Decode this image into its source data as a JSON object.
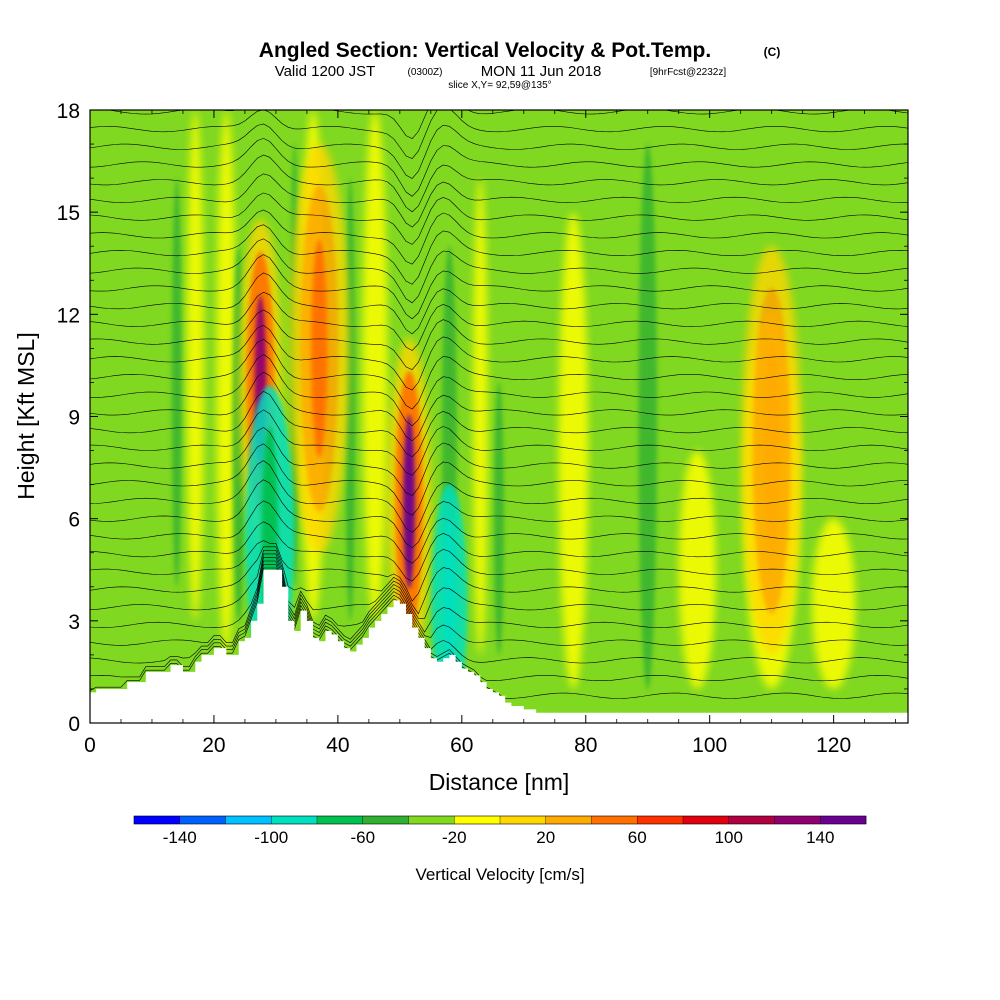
{
  "chart_data": {
    "type": "heatmap",
    "title": "Angled Section: Vertical Velocity & Pot.Temp.",
    "title_tag": "(C)",
    "subtitle": {
      "valid": "Valid 1200 JST",
      "utc": "(0300Z)",
      "date": "MON 11 Jun 2018",
      "forecast": "[9hrFcst@2232z]"
    },
    "slice_label": "slice X,Y= 92,59@135°",
    "xlabel": "Distance [nm]",
    "ylabel": "Height [Kft MSL]",
    "xlim": [
      0,
      132
    ],
    "ylim": [
      0,
      18
    ],
    "x_ticks": [
      "0",
      "20",
      "40",
      "60",
      "80",
      "100",
      "120"
    ],
    "x_tick_values": [
      0,
      20,
      40,
      60,
      80,
      100,
      120
    ],
    "y_ticks": [
      "0",
      "3",
      "6",
      "9",
      "12",
      "15",
      "18"
    ],
    "y_tick_values": [
      0,
      3,
      6,
      9,
      12,
      15,
      18
    ],
    "colorbar": {
      "label": "Vertical Velocity [cm/s]",
      "tick_labels": [
        "-140",
        "-100",
        "-60",
        "-20",
        "20",
        "60",
        "100",
        "140"
      ],
      "tick_values": [
        -140,
        -100,
        -60,
        -20,
        20,
        60,
        100,
        140
      ],
      "range": [
        -160,
        160
      ],
      "colors": [
        "#0000ff",
        "#0060ff",
        "#00c0ff",
        "#00e0c0",
        "#00c050",
        "#30b030",
        "#80d820",
        "#ffff00",
        "#ffd700",
        "#ffaa00",
        "#ff7000",
        "#ff3000",
        "#e00010",
        "#b00040",
        "#900070",
        "#6a0090"
      ]
    },
    "features": [
      {
        "kind": "updraft",
        "x": 27.5,
        "y": 10,
        "value": 120
      },
      {
        "kind": "downdraft",
        "x": 29,
        "y": 5.5,
        "value": -80
      },
      {
        "kind": "updraft",
        "x": 51.5,
        "y": 6.5,
        "value": 150
      },
      {
        "kind": "downdraft",
        "x": 58,
        "y": 3.5,
        "value": -100
      },
      {
        "kind": "updraft",
        "x": 37,
        "y": 11,
        "value": 40
      },
      {
        "kind": "weak-updraft",
        "x": 110,
        "y": 8,
        "value": 20
      }
    ],
    "terrain": [
      [
        0,
        0.9
      ],
      [
        1,
        1.0
      ],
      [
        2,
        1.0
      ],
      [
        4,
        1.0
      ],
      [
        6,
        1.2
      ],
      [
        8,
        1.2
      ],
      [
        9,
        1.5
      ],
      [
        12,
        1.5
      ],
      [
        13,
        1.7
      ],
      [
        14,
        1.7
      ],
      [
        15,
        1.5
      ],
      [
        17,
        1.5
      ],
      [
        17,
        1.8
      ],
      [
        18,
        2.0
      ],
      [
        19,
        2.0
      ],
      [
        20,
        2.2
      ],
      [
        21,
        2.2
      ],
      [
        22,
        2.0
      ],
      [
        23,
        2.0
      ],
      [
        24,
        2.4
      ],
      [
        25,
        2.5
      ],
      [
        26,
        3.0
      ],
      [
        27,
        3.5
      ],
      [
        28,
        4.5
      ],
      [
        30,
        4.5
      ],
      [
        31,
        4.0
      ],
      [
        32,
        3.0
      ],
      [
        33,
        2.7
      ],
      [
        34,
        3.3
      ],
      [
        35,
        3.0
      ],
      [
        36,
        2.5
      ],
      [
        37,
        2.4
      ],
      [
        38,
        2.7
      ],
      [
        39,
        2.6
      ],
      [
        40,
        2.4
      ],
      [
        41,
        2.2
      ],
      [
        42,
        2.1
      ],
      [
        43,
        2.3
      ],
      [
        44,
        2.5
      ],
      [
        45,
        2.8
      ],
      [
        46,
        3.0
      ],
      [
        47,
        3.2
      ],
      [
        48,
        3.4
      ],
      [
        49,
        3.6
      ],
      [
        50,
        3.5
      ],
      [
        51,
        3.2
      ],
      [
        52,
        2.8
      ],
      [
        53,
        2.5
      ],
      [
        54,
        2.2
      ],
      [
        55,
        1.9
      ],
      [
        56,
        1.8
      ],
      [
        57,
        1.9
      ],
      [
        58,
        2.0
      ],
      [
        59,
        1.8
      ],
      [
        60,
        1.6
      ],
      [
        61,
        1.5
      ],
      [
        62,
        1.4
      ],
      [
        63,
        1.2
      ],
      [
        64,
        1.0
      ],
      [
        65,
        0.9
      ],
      [
        66,
        0.8
      ],
      [
        67,
        0.6
      ],
      [
        68,
        0.5
      ],
      [
        70,
        0.4
      ],
      [
        72,
        0.3
      ],
      [
        132,
        0.3
      ]
    ]
  }
}
